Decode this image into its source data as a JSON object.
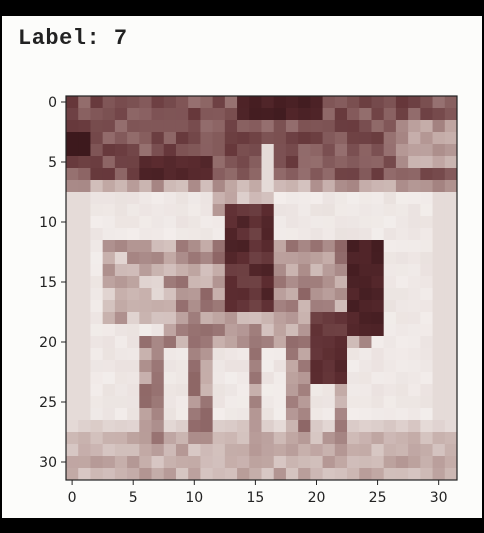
{
  "figure_title": "Label: 7",
  "image": {
    "description_of_content": "pixelated 32x32 sepia image of a horse with rider",
    "grid_size": [
      32,
      32
    ],
    "colormap": "sepia-brown",
    "x_ticks": [
      0,
      5,
      10,
      15,
      20,
      25,
      30
    ],
    "y_ticks": [
      0,
      5,
      10,
      15,
      20,
      25,
      30
    ],
    "palette": {
      "darkest": "#3a1a1c",
      "dark": "#5e2e32",
      "mid": "#8c6464",
      "light": "#c8aeaa",
      "lightest": "#f4f0ee"
    }
  }
}
